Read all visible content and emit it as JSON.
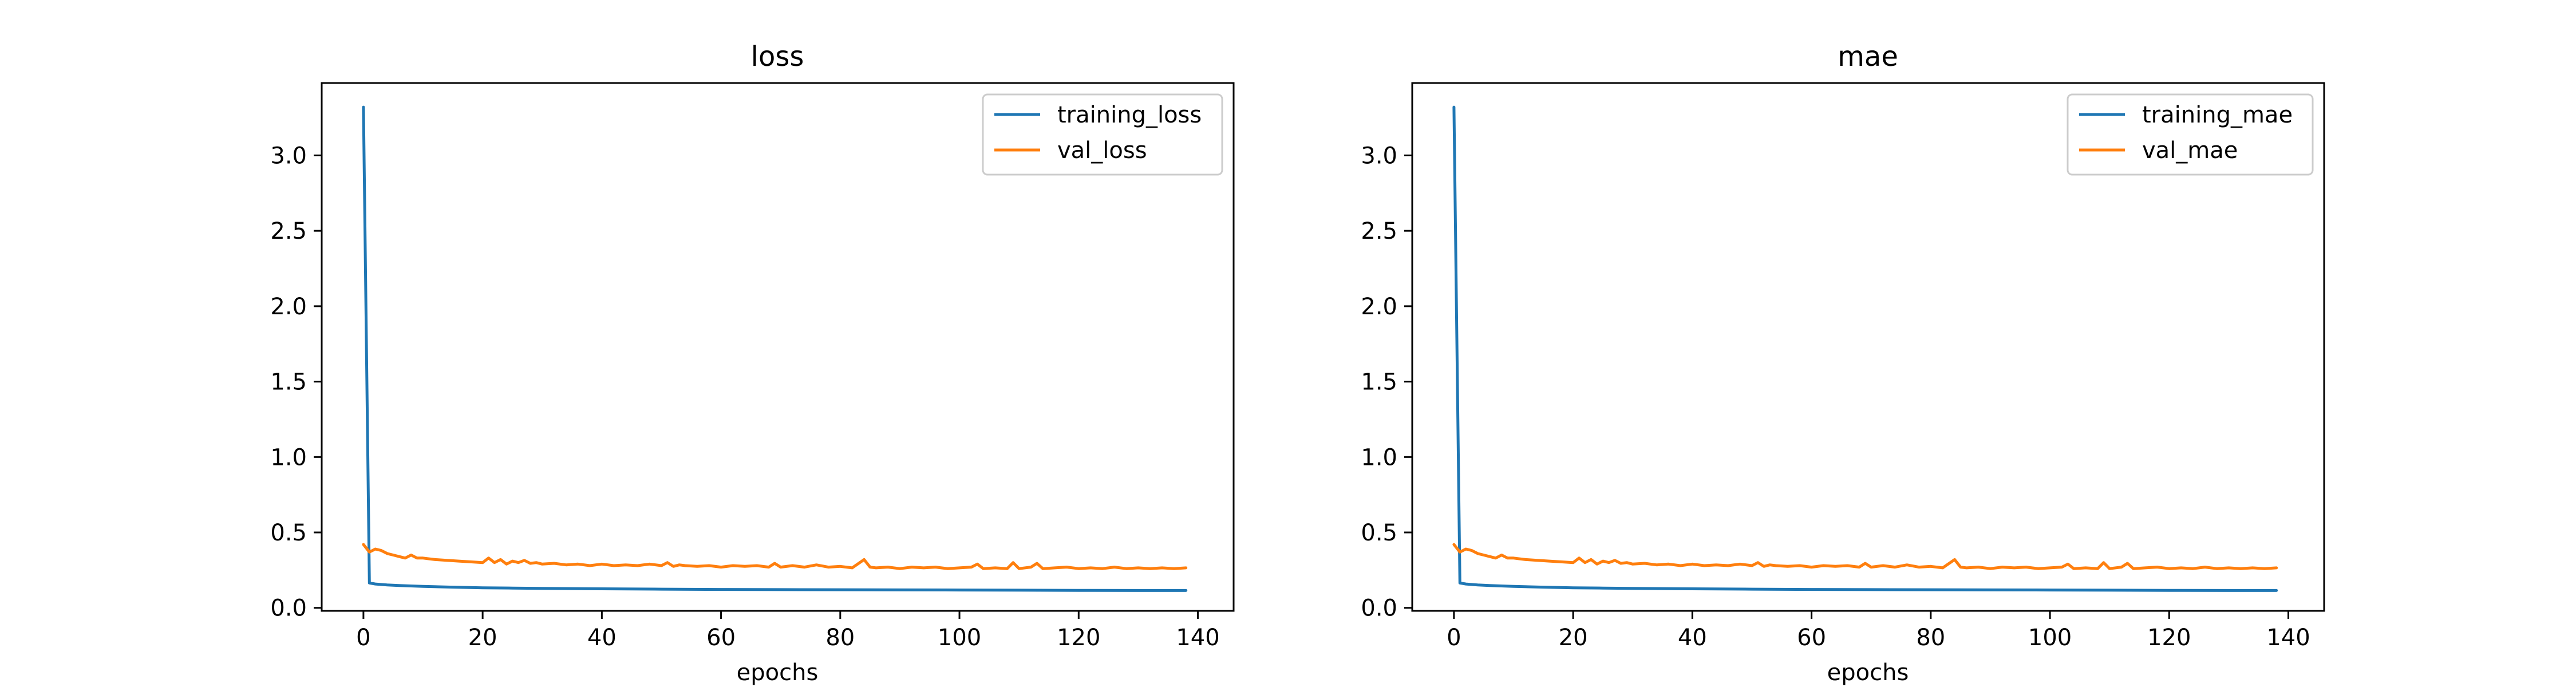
{
  "chart_data": [
    {
      "type": "line",
      "title": "loss",
      "xlabel": "epochs",
      "ylabel": "",
      "xlim": [
        -7,
        146
      ],
      "ylim": [
        -0.02,
        3.48
      ],
      "xticks": [
        0,
        20,
        40,
        60,
        80,
        100,
        120,
        140
      ],
      "yticks": [
        0.0,
        0.5,
        1.0,
        1.5,
        2.0,
        2.5,
        3.0
      ],
      "legend_position": "top-right",
      "grid": false,
      "series": [
        {
          "name": "training_loss",
          "color": "#1f77b4",
          "x": [
            0,
            1,
            2,
            4,
            6,
            8,
            10,
            15,
            20,
            25,
            30,
            40,
            50,
            60,
            70,
            80,
            90,
            100,
            110,
            120,
            130,
            138
          ],
          "y": [
            3.32,
            0.165,
            0.158,
            0.152,
            0.148,
            0.145,
            0.142,
            0.137,
            0.133,
            0.131,
            0.129,
            0.126,
            0.124,
            0.122,
            0.121,
            0.12,
            0.119,
            0.118,
            0.117,
            0.116,
            0.115,
            0.115
          ]
        },
        {
          "name": "val_loss",
          "color": "#ff7f0e",
          "x": [
            0,
            1,
            2,
            3,
            4,
            5,
            6,
            7,
            8,
            9,
            10,
            12,
            14,
            16,
            18,
            20,
            21,
            22,
            23,
            24,
            25,
            26,
            27,
            28,
            29,
            30,
            32,
            34,
            36,
            38,
            40,
            42,
            44,
            46,
            48,
            50,
            51,
            52,
            53,
            54,
            56,
            58,
            60,
            62,
            64,
            66,
            68,
            69,
            70,
            72,
            74,
            76,
            78,
            80,
            82,
            84,
            85,
            86,
            88,
            90,
            92,
            94,
            96,
            98,
            100,
            102,
            103,
            104,
            106,
            108,
            109,
            110,
            112,
            113,
            114,
            116,
            118,
            120,
            122,
            124,
            126,
            128,
            130,
            132,
            134,
            136,
            138
          ],
          "y": [
            0.42,
            0.37,
            0.39,
            0.38,
            0.36,
            0.35,
            0.34,
            0.33,
            0.35,
            0.33,
            0.33,
            0.32,
            0.315,
            0.31,
            0.305,
            0.3,
            0.33,
            0.3,
            0.32,
            0.29,
            0.31,
            0.3,
            0.315,
            0.295,
            0.3,
            0.29,
            0.295,
            0.285,
            0.29,
            0.28,
            0.29,
            0.28,
            0.285,
            0.28,
            0.29,
            0.28,
            0.3,
            0.275,
            0.285,
            0.28,
            0.275,
            0.28,
            0.27,
            0.28,
            0.275,
            0.28,
            0.27,
            0.295,
            0.27,
            0.28,
            0.27,
            0.285,
            0.27,
            0.275,
            0.265,
            0.32,
            0.27,
            0.265,
            0.27,
            0.26,
            0.27,
            0.265,
            0.27,
            0.26,
            0.265,
            0.27,
            0.29,
            0.26,
            0.265,
            0.26,
            0.3,
            0.26,
            0.27,
            0.295,
            0.26,
            0.265,
            0.27,
            0.26,
            0.265,
            0.26,
            0.27,
            0.26,
            0.265,
            0.26,
            0.265,
            0.26,
            0.265
          ]
        }
      ]
    },
    {
      "type": "line",
      "title": "mae",
      "xlabel": "epochs",
      "ylabel": "",
      "xlim": [
        -7,
        146
      ],
      "ylim": [
        -0.02,
        3.48
      ],
      "xticks": [
        0,
        20,
        40,
        60,
        80,
        100,
        120,
        140
      ],
      "yticks": [
        0.0,
        0.5,
        1.0,
        1.5,
        2.0,
        2.5,
        3.0
      ],
      "legend_position": "top-right",
      "grid": false,
      "series": [
        {
          "name": "training_mae",
          "color": "#1f77b4",
          "x": [
            0,
            1,
            2,
            4,
            6,
            8,
            10,
            15,
            20,
            25,
            30,
            40,
            50,
            60,
            70,
            80,
            90,
            100,
            110,
            120,
            130,
            138
          ],
          "y": [
            3.32,
            0.165,
            0.158,
            0.152,
            0.148,
            0.145,
            0.142,
            0.137,
            0.133,
            0.131,
            0.129,
            0.126,
            0.124,
            0.122,
            0.121,
            0.12,
            0.119,
            0.118,
            0.117,
            0.116,
            0.115,
            0.115
          ]
        },
        {
          "name": "val_mae",
          "color": "#ff7f0e",
          "x": [
            0,
            1,
            2,
            3,
            4,
            5,
            6,
            7,
            8,
            9,
            10,
            12,
            14,
            16,
            18,
            20,
            21,
            22,
            23,
            24,
            25,
            26,
            27,
            28,
            29,
            30,
            32,
            34,
            36,
            38,
            40,
            42,
            44,
            46,
            48,
            50,
            51,
            52,
            53,
            54,
            56,
            58,
            60,
            62,
            64,
            66,
            68,
            69,
            70,
            72,
            74,
            76,
            78,
            80,
            82,
            84,
            85,
            86,
            88,
            90,
            92,
            94,
            96,
            98,
            100,
            102,
            103,
            104,
            106,
            108,
            109,
            110,
            112,
            113,
            114,
            116,
            118,
            120,
            122,
            124,
            126,
            128,
            130,
            132,
            134,
            136,
            138
          ],
          "y": [
            0.42,
            0.37,
            0.39,
            0.38,
            0.36,
            0.35,
            0.34,
            0.33,
            0.35,
            0.33,
            0.33,
            0.32,
            0.315,
            0.31,
            0.305,
            0.3,
            0.33,
            0.3,
            0.32,
            0.29,
            0.31,
            0.3,
            0.315,
            0.295,
            0.3,
            0.29,
            0.295,
            0.285,
            0.29,
            0.28,
            0.29,
            0.28,
            0.285,
            0.28,
            0.29,
            0.28,
            0.3,
            0.275,
            0.285,
            0.28,
            0.275,
            0.28,
            0.27,
            0.28,
            0.275,
            0.28,
            0.27,
            0.295,
            0.27,
            0.28,
            0.27,
            0.285,
            0.27,
            0.275,
            0.265,
            0.32,
            0.27,
            0.265,
            0.27,
            0.26,
            0.27,
            0.265,
            0.27,
            0.26,
            0.265,
            0.27,
            0.29,
            0.26,
            0.265,
            0.26,
            0.3,
            0.26,
            0.27,
            0.295,
            0.26,
            0.265,
            0.27,
            0.26,
            0.265,
            0.26,
            0.27,
            0.26,
            0.265,
            0.26,
            0.265,
            0.26,
            0.265
          ]
        }
      ]
    }
  ]
}
